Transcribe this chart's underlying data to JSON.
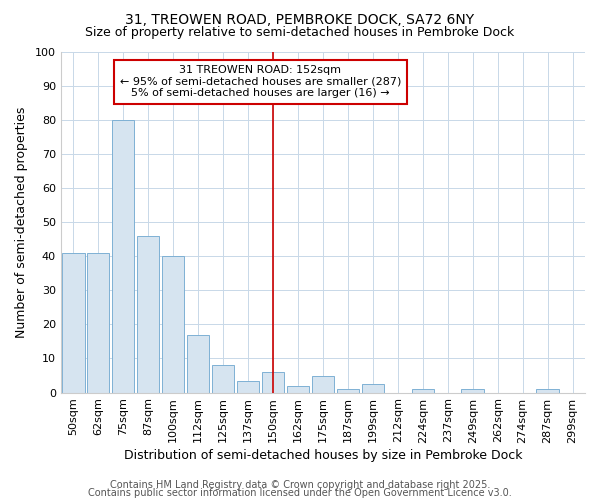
{
  "title": "31, TREOWEN ROAD, PEMBROKE DOCK, SA72 6NY",
  "subtitle": "Size of property relative to semi-detached houses in Pembroke Dock",
  "xlabel": "Distribution of semi-detached houses by size in Pembroke Dock",
  "ylabel": "Number of semi-detached properties",
  "categories": [
    "50sqm",
    "62sqm",
    "75sqm",
    "87sqm",
    "100sqm",
    "112sqm",
    "125sqm",
    "137sqm",
    "150sqm",
    "162sqm",
    "175sqm",
    "187sqm",
    "199sqm",
    "212sqm",
    "224sqm",
    "237sqm",
    "249sqm",
    "262sqm",
    "274sqm",
    "287sqm",
    "299sqm"
  ],
  "values": [
    41,
    41,
    80,
    46,
    40,
    17,
    8,
    3.5,
    6,
    2,
    5,
    1,
    2.5,
    0,
    1,
    0,
    1,
    0,
    0,
    1,
    0
  ],
  "bar_color": "#d6e4f0",
  "bar_edge_color": "#7eb0d4",
  "vline_x_idx": 8,
  "annotation_text_line1": "31 TREOWEN ROAD: 152sqm",
  "annotation_text_line2": "← 95% of semi-detached houses are smaller (287)",
  "annotation_text_line3": "5% of semi-detached houses are larger (16) →",
  "annotation_box_color": "#ffffff",
  "annotation_box_edge_color": "#cc0000",
  "vline_color": "#cc0000",
  "ylim": [
    0,
    100
  ],
  "yticks": [
    0,
    10,
    20,
    30,
    40,
    50,
    60,
    70,
    80,
    90,
    100
  ],
  "footer1": "Contains HM Land Registry data © Crown copyright and database right 2025.",
  "footer2": "Contains public sector information licensed under the Open Government Licence v3.0.",
  "bg_color": "#ffffff",
  "plot_bg_color": "#ffffff",
  "grid_color": "#c8d8e8",
  "title_fontsize": 10,
  "subtitle_fontsize": 9,
  "axis_label_fontsize": 9,
  "tick_fontsize": 8,
  "annotation_fontsize": 8,
  "footer_fontsize": 7
}
